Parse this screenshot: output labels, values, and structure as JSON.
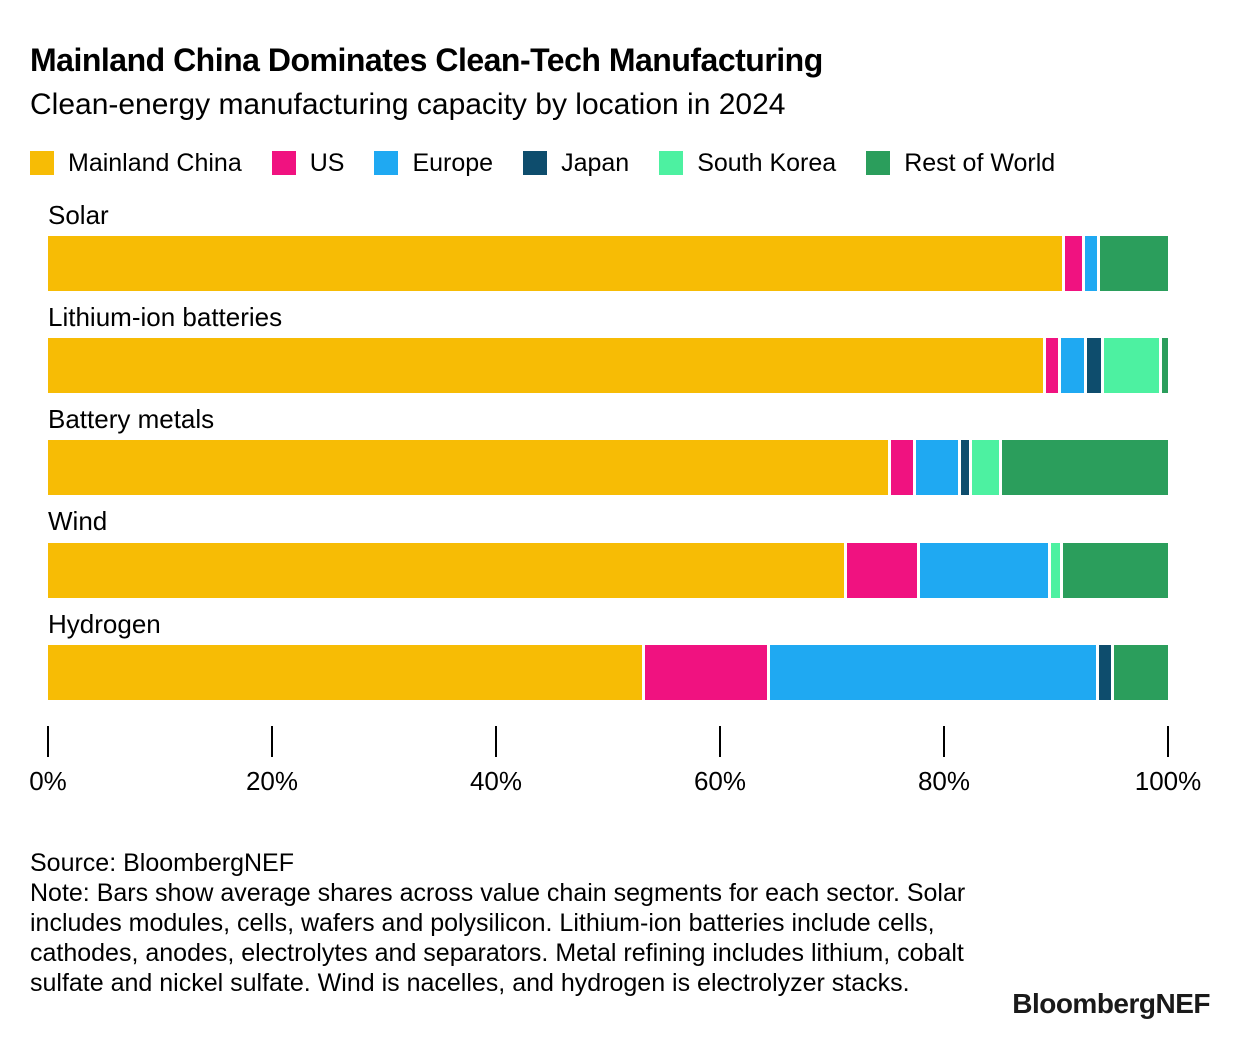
{
  "header": {
    "title": "Mainland China Dominates Clean-Tech Manufacturing",
    "subtitle": "Clean-energy manufacturing capacity by location in 2024"
  },
  "legend": {
    "items": [
      {
        "label": "Mainland China",
        "color": "#F7BC05"
      },
      {
        "label": "US",
        "color": "#F01280"
      },
      {
        "label": "Europe",
        "color": "#1FA9F2"
      },
      {
        "label": "Japan",
        "color": "#0E4D6D"
      },
      {
        "label": "South Korea",
        "color": "#4DF1A1"
      },
      {
        "label": "Rest of World",
        "color": "#2B9E5C"
      }
    ]
  },
  "chart_data": {
    "type": "bar",
    "variant": "horizontal-stacked",
    "unit": "percent",
    "title": "Mainland China Dominates Clean-Tech Manufacturing",
    "subtitle": "Clean-energy manufacturing capacity by location in 2024",
    "xlabel": "",
    "ylabel": "",
    "xlim": [
      0,
      100
    ],
    "grid": false,
    "legend_position": "top",
    "categories": [
      "Solar",
      "Lithium-ion batteries",
      "Battery metals",
      "Wind",
      "Hydrogen"
    ],
    "series": [
      {
        "name": "Mainland China",
        "color": "#F7BC05",
        "values": [
          91.3,
          90.0,
          76.0,
          71.8,
          53.6
        ]
      },
      {
        "name": "US",
        "color": "#F01280",
        "values": [
          1.5,
          1.1,
          2.0,
          6.4,
          11.0
        ]
      },
      {
        "name": "Europe",
        "color": "#1FA9F2",
        "values": [
          1.1,
          2.1,
          3.8,
          11.5,
          29.4
        ]
      },
      {
        "name": "Japan",
        "color": "#0E4D6D",
        "values": [
          0,
          1.3,
          0.7,
          0,
          1.1
        ]
      },
      {
        "name": "South Korea",
        "color": "#4DF1A1",
        "values": [
          0,
          5.0,
          2.5,
          0.8,
          0
        ]
      },
      {
        "name": "Rest of World",
        "color": "#2B9E5C",
        "values": [
          6.1,
          0.5,
          15.0,
          9.5,
          4.9
        ]
      }
    ],
    "x_ticks": [
      "0%",
      "20%",
      "40%",
      "60%",
      "80%",
      "100%"
    ]
  },
  "footer": {
    "source": "Source: BloombergNEF",
    "note": "Note: Bars show average shares across value chain segments for each sector. Solar includes modules, cells, wafers and polysilicon. Lithium-ion batteries include cells, cathodes, anodes, electrolytes and separators. Metal refining includes lithium, cobalt sulfate and nickel sulfate. Wind is nacelles, and hydrogen is electrolyzer stacks.",
    "logo": "BloombergNEF"
  }
}
